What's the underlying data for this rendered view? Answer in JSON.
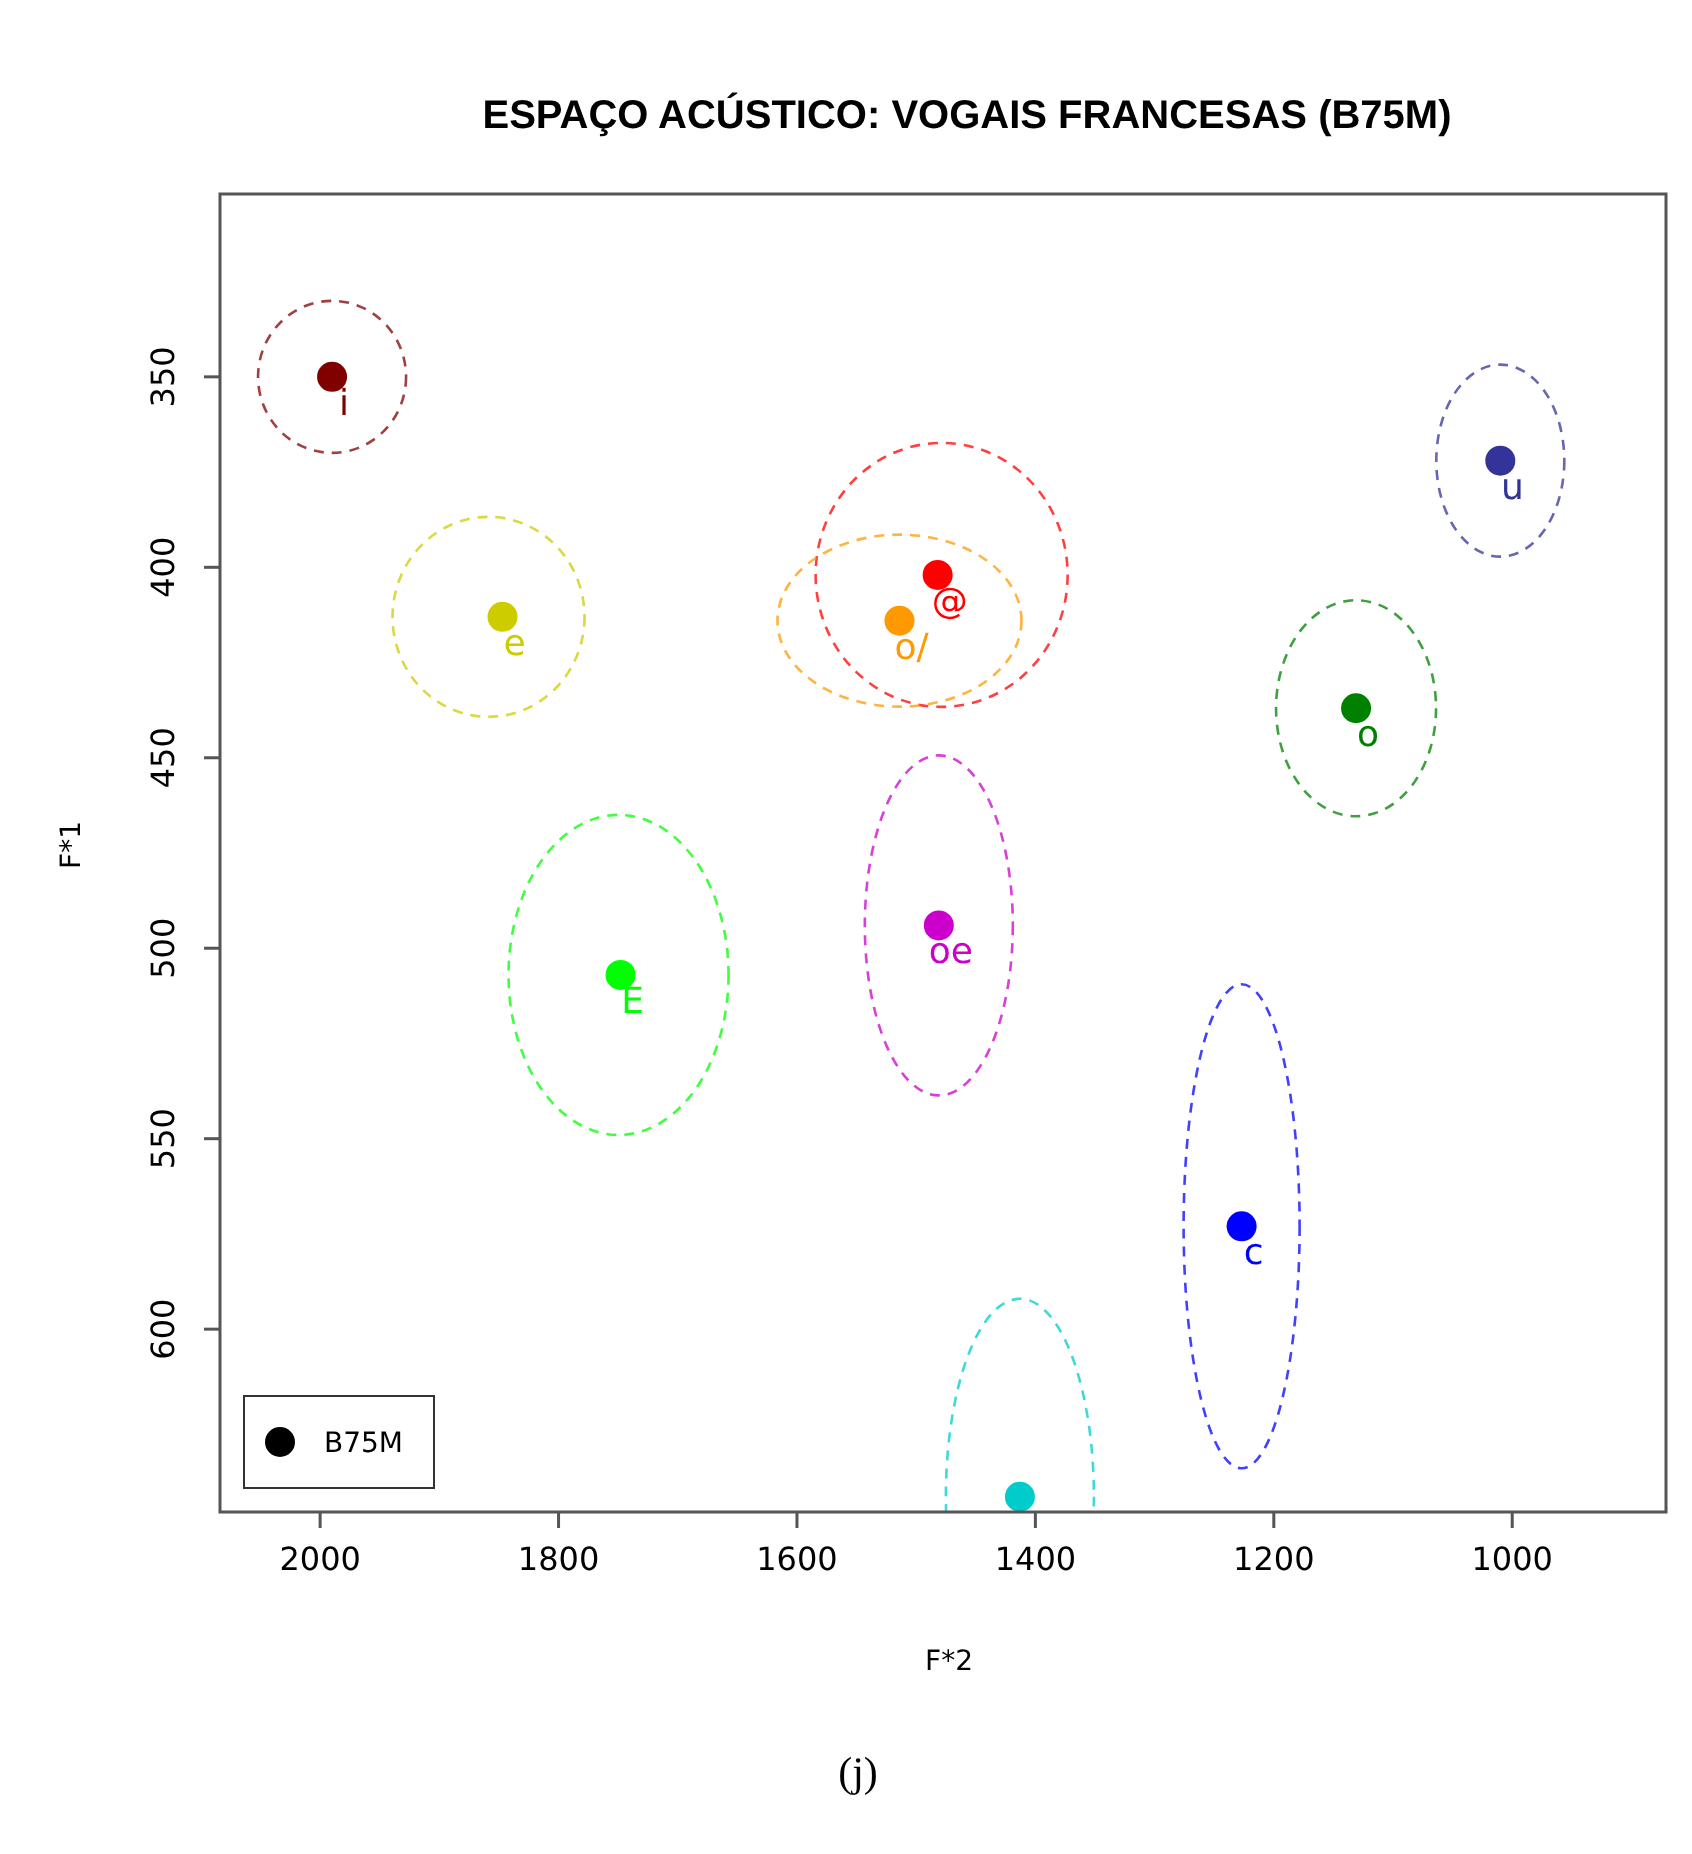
{
  "chart_data": {
    "type": "scatter",
    "title": "ESPAÇO ACÚSTICO: VOGAIS FRANCESAS (B75M)",
    "xlabel": "F*2",
    "ylabel": "F*1",
    "annotations": [
      "(j)"
    ],
    "xlim": [
      2084,
      871
    ],
    "ylim": [
      648,
      302
    ],
    "xticks": [
      2000,
      1800,
      1600,
      1400,
      1200,
      1000
    ],
    "yticks": [
      350,
      400,
      450,
      500,
      550,
      600
    ],
    "grid": false,
    "legend": "bottom left",
    "marker": "circle",
    "series": [
      {
        "type": "scatter",
        "name": "B75M",
        "color": "#000000",
        "colors": [
          "#800000",
          "#cccc00",
          "#ff0000",
          "#ff9900",
          "#008000",
          "#333399",
          "#00ff00",
          "#cc00cc",
          "#0000ff",
          "#00cccc"
        ],
        "x": [
          1990,
          1847,
          1482,
          1514,
          1131,
          1010,
          1748,
          1481,
          1227,
          1413
        ],
        "values": [
          350,
          413,
          402,
          414,
          437,
          372,
          507,
          494,
          573,
          644
        ],
        "value_labels": [
          "i",
          "e",
          "@",
          "o/",
          "o",
          "u",
          "E",
          "oe",
          "c",
          null
        ]
      }
    ]
  }
}
